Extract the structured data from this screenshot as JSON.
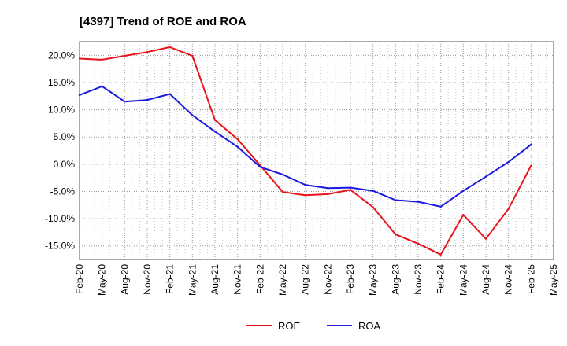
{
  "chart_data": {
    "type": "line",
    "title": "[4397]  Trend of ROE and ROA",
    "xlabel": "",
    "ylabel": "",
    "ylim": [
      -17.5,
      22.5
    ],
    "y_ticks": [
      20,
      15,
      10,
      5,
      0,
      -5,
      -10,
      -15
    ],
    "y_tick_labels": [
      "20.0%",
      "15.0%",
      "10.0%",
      "5.0%",
      "0.0%",
      "-5.0%",
      "-10.0%",
      "-15.0%"
    ],
    "x_tick_labels": [
      "Feb-20",
      "May-20",
      "Aug-20",
      "Nov-20",
      "Feb-21",
      "May-21",
      "Aug-21",
      "Nov-21",
      "Feb-22",
      "May-22",
      "Aug-22",
      "Nov-22",
      "Feb-23",
      "May-23",
      "Aug-23",
      "Nov-23",
      "Feb-24",
      "May-24",
      "Aug-24",
      "Nov-24",
      "Feb-25",
      "May-25"
    ],
    "categories": [
      "Feb-20",
      "May-20",
      "Aug-20",
      "Nov-20",
      "Feb-21",
      "May-21",
      "Aug-21",
      "Nov-21",
      "Feb-22",
      "May-22",
      "Aug-22",
      "Nov-22",
      "Feb-23",
      "May-23",
      "Aug-23",
      "Nov-23",
      "Feb-24",
      "May-24",
      "Aug-24",
      "Nov-24",
      "Feb-25"
    ],
    "grid": true,
    "legend_position": "bottom",
    "series": [
      {
        "name": "ROE",
        "color": "#e8141c",
        "values": [
          19.4,
          19.2,
          19.9,
          20.6,
          21.5,
          19.9,
          8.1,
          4.6,
          -0.2,
          -5.1,
          -5.7,
          -5.5,
          -4.7,
          -7.9,
          -12.9,
          -14.6,
          -16.6,
          -9.3,
          -13.7,
          -8.2,
          -0.3
        ]
      },
      {
        "name": "ROA",
        "color": "#1a1ae0",
        "values": [
          12.7,
          14.3,
          11.5,
          11.8,
          12.9,
          9.0,
          6.0,
          3.2,
          -0.5,
          -1.9,
          -3.8,
          -4.4,
          -4.3,
          -4.9,
          -6.6,
          -6.9,
          -7.8,
          -4.9,
          -2.3,
          0.4,
          3.6
        ]
      }
    ]
  }
}
